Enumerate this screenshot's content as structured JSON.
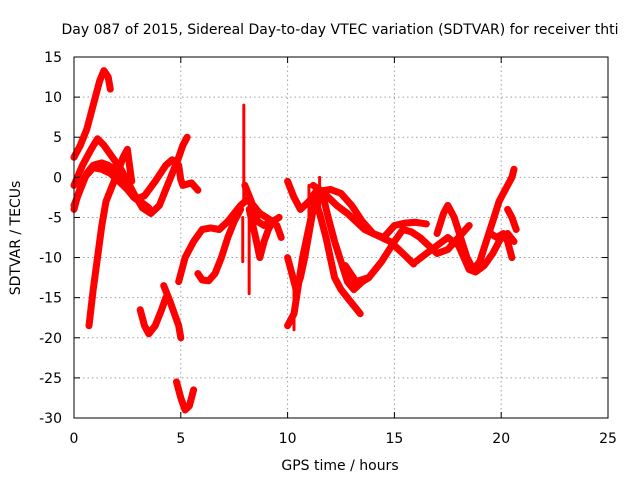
{
  "chart_data": {
    "type": "scatter",
    "title": "Day 087 of 2015, Sidereal Day-to-day VTEC variation (SDTVAR) for receiver thti",
    "xlabel": "GPS time / hours",
    "ylabel": "SDTVAR / TECUs",
    "xlim": [
      0,
      25
    ],
    "ylim": [
      -30,
      15
    ],
    "xticks": [
      0,
      5,
      10,
      15,
      20,
      25
    ],
    "yticks": [
      -30,
      -25,
      -20,
      -15,
      -10,
      -5,
      0,
      5,
      10,
      15
    ],
    "grid": true,
    "marker": "+",
    "color": "#ff0000",
    "series": [
      {
        "name": "arc-1",
        "points": [
          [
            0.0,
            2.5
          ],
          [
            0.3,
            4.0
          ],
          [
            0.6,
            6.0
          ],
          [
            0.9,
            9.0
          ],
          [
            1.2,
            12.0
          ],
          [
            1.4,
            13.3
          ],
          [
            1.6,
            12.5
          ],
          [
            1.7,
            11.0
          ]
        ]
      },
      {
        "name": "arc-2",
        "points": [
          [
            0.0,
            -1.0
          ],
          [
            0.4,
            1.5
          ],
          [
            0.8,
            3.5
          ],
          [
            1.1,
            4.8
          ],
          [
            1.4,
            4.0
          ],
          [
            1.8,
            2.5
          ],
          [
            2.2,
            1.0
          ],
          [
            2.5,
            -0.5
          ],
          [
            2.8,
            -2.0
          ],
          [
            3.2,
            -3.8
          ],
          [
            3.6,
            -4.5
          ],
          [
            4.0,
            -3.5
          ],
          [
            4.3,
            -1.5
          ],
          [
            4.6,
            0.5
          ],
          [
            4.9,
            2.5
          ],
          [
            5.1,
            4.0
          ],
          [
            5.3,
            5.0
          ]
        ]
      },
      {
        "name": "arc-3",
        "points": [
          [
            0.0,
            -4.0
          ],
          [
            0.2,
            -2.0
          ],
          [
            0.5,
            0.0
          ],
          [
            0.9,
            1.2
          ],
          [
            1.3,
            1.0
          ],
          [
            1.7,
            0.5
          ],
          [
            2.1,
            -0.5
          ],
          [
            2.5,
            -1.5
          ],
          [
            2.9,
            -2.7
          ],
          [
            3.3,
            -2.3
          ],
          [
            3.8,
            -0.5
          ],
          [
            4.3,
            1.5
          ],
          [
            4.6,
            2.2
          ],
          [
            4.9,
            1.5
          ],
          [
            5.0,
            -0.3
          ],
          [
            5.1,
            -1.0
          ],
          [
            5.5,
            -0.7
          ],
          [
            5.8,
            -1.6
          ]
        ]
      },
      {
        "name": "arc-4",
        "points": [
          [
            0.0,
            -3.5
          ],
          [
            0.3,
            -1.5
          ],
          [
            0.6,
            0.5
          ],
          [
            0.9,
            1.5
          ],
          [
            1.3,
            1.8
          ],
          [
            1.6,
            1.5
          ],
          [
            1.9,
            1.0
          ],
          [
            2.2,
            -0.5
          ],
          [
            2.5,
            -1.5
          ],
          [
            2.8,
            -2.5
          ],
          [
            3.1,
            -3.0
          ],
          [
            3.5,
            -3.8
          ]
        ]
      },
      {
        "name": "arc-5",
        "points": [
          [
            0.7,
            -18.5
          ],
          [
            0.9,
            -14.0
          ],
          [
            1.1,
            -10.0
          ],
          [
            1.3,
            -6.0
          ],
          [
            1.5,
            -3.0
          ],
          [
            1.8,
            -1.0
          ],
          [
            2.1,
            1.0
          ],
          [
            2.3,
            2.5
          ],
          [
            2.5,
            3.5
          ],
          [
            2.6,
            1.5
          ],
          [
            2.7,
            -0.5
          ]
        ]
      },
      {
        "name": "arc-6",
        "points": [
          [
            3.1,
            -16.5
          ],
          [
            3.3,
            -18.5
          ],
          [
            3.5,
            -19.5
          ],
          [
            3.8,
            -18.5
          ],
          [
            4.1,
            -16.5
          ],
          [
            4.3,
            -15.0
          ]
        ]
      },
      {
        "name": "arc-7",
        "points": [
          [
            4.2,
            -13.5
          ],
          [
            4.5,
            -15.5
          ],
          [
            4.7,
            -17.0
          ],
          [
            4.9,
            -18.5
          ],
          [
            5.0,
            -20.0
          ]
        ]
      },
      {
        "name": "arc-8",
        "points": [
          [
            4.9,
            -13.0
          ],
          [
            5.2,
            -10.0
          ],
          [
            5.6,
            -8.0
          ],
          [
            6.0,
            -6.5
          ],
          [
            6.4,
            -6.3
          ],
          [
            6.8,
            -6.5
          ],
          [
            7.2,
            -5.5
          ],
          [
            7.5,
            -4.5
          ],
          [
            7.8,
            -3.5
          ],
          [
            8.1,
            -2.8
          ],
          [
            8.4,
            -3.5
          ],
          [
            8.7,
            -4.5
          ],
          [
            9.0,
            -5.0
          ],
          [
            9.3,
            -5.5
          ]
        ]
      },
      {
        "name": "arc-9",
        "points": [
          [
            4.8,
            -25.5
          ],
          [
            5.0,
            -27.5
          ],
          [
            5.2,
            -29.0
          ],
          [
            5.4,
            -28.5
          ],
          [
            5.5,
            -27.5
          ],
          [
            5.6,
            -26.5
          ]
        ]
      },
      {
        "name": "arc-10",
        "points": [
          [
            5.8,
            -12.0
          ],
          [
            6.0,
            -12.8
          ],
          [
            6.3,
            -12.9
          ],
          [
            6.6,
            -12.0
          ],
          [
            6.9,
            -10.0
          ],
          [
            7.2,
            -7.5
          ],
          [
            7.5,
            -5.5
          ],
          [
            7.8,
            -4.0
          ]
        ]
      },
      {
        "name": "arc-11",
        "points": [
          [
            8.0,
            -1.0
          ],
          [
            8.3,
            -3.0
          ],
          [
            8.6,
            -5.5
          ],
          [
            8.9,
            -6.0
          ],
          [
            9.2,
            -5.5
          ],
          [
            9.5,
            -6.0
          ],
          [
            9.7,
            -7.5
          ]
        ]
      },
      {
        "name": "arc-12",
        "points": [
          [
            8.2,
            -4.0
          ],
          [
            8.5,
            -7.5
          ],
          [
            8.7,
            -10.0
          ],
          [
            8.9,
            -8.0
          ],
          [
            9.1,
            -6.5
          ],
          [
            9.3,
            -5.5
          ],
          [
            9.6,
            -5.0
          ]
        ]
      },
      {
        "name": "arc-13",
        "points": [
          [
            10.0,
            -18.5
          ],
          [
            10.3,
            -17.0
          ],
          [
            10.5,
            -13.5
          ],
          [
            10.7,
            -10.0
          ],
          [
            10.9,
            -7.5
          ],
          [
            11.1,
            -5.0
          ],
          [
            11.3,
            -3.0
          ],
          [
            11.5,
            -4.5
          ],
          [
            11.8,
            -7.5
          ],
          [
            12.0,
            -10.0
          ],
          [
            12.2,
            -12.5
          ],
          [
            12.5,
            -14.0
          ],
          [
            12.8,
            -15.0
          ],
          [
            13.1,
            -16.0
          ],
          [
            13.4,
            -17.0
          ]
        ]
      },
      {
        "name": "arc-14",
        "points": [
          [
            10.0,
            -10.0
          ],
          [
            10.2,
            -12.0
          ],
          [
            10.4,
            -14.0
          ],
          [
            10.6,
            -12.5
          ],
          [
            10.8,
            -10.0
          ],
          [
            11.0,
            -7.0
          ],
          [
            11.2,
            -4.0
          ],
          [
            11.4,
            -2.0
          ],
          [
            11.7,
            -2.8
          ],
          [
            11.9,
            -5.0
          ],
          [
            12.2,
            -8.0
          ],
          [
            12.5,
            -10.5
          ],
          [
            12.8,
            -13.0
          ],
          [
            13.1,
            -14.0
          ],
          [
            13.5,
            -13.0
          ],
          [
            13.8,
            -12.5
          ]
        ]
      },
      {
        "name": "arc-15",
        "points": [
          [
            10.0,
            -0.5
          ],
          [
            10.3,
            -2.5
          ],
          [
            10.6,
            -4.0
          ],
          [
            11.0,
            -3.0
          ],
          [
            11.4,
            -1.5
          ],
          [
            11.8,
            -2.2
          ],
          [
            12.3,
            -3.5
          ],
          [
            12.8,
            -4.5
          ],
          [
            13.2,
            -5.5
          ],
          [
            13.6,
            -6.5
          ],
          [
            14.0,
            -7.0
          ],
          [
            14.4,
            -7.5
          ],
          [
            14.8,
            -8.0
          ],
          [
            15.2,
            -9.0
          ],
          [
            15.6,
            -10.0
          ],
          [
            15.9,
            -10.8
          ]
        ]
      },
      {
        "name": "arc-16",
        "points": [
          [
            11.2,
            -1.0
          ],
          [
            11.6,
            -1.7
          ],
          [
            12.0,
            -1.5
          ],
          [
            12.5,
            -2.0
          ],
          [
            13.0,
            -3.5
          ],
          [
            13.5,
            -5.5
          ],
          [
            14.0,
            -7.0
          ],
          [
            14.5,
            -7.5
          ],
          [
            15.0,
            -6.0
          ],
          [
            15.5,
            -5.7
          ],
          [
            16.0,
            -5.6
          ],
          [
            16.5,
            -5.8
          ]
        ]
      },
      {
        "name": "arc-17",
        "points": [
          [
            12.7,
            -11.0
          ],
          [
            13.2,
            -13.0
          ],
          [
            13.8,
            -12.5
          ],
          [
            14.4,
            -10.5
          ],
          [
            15.0,
            -8.0
          ],
          [
            15.4,
            -6.5
          ],
          [
            15.8,
            -6.8
          ],
          [
            16.2,
            -7.5
          ],
          [
            16.6,
            -8.5
          ],
          [
            17.0,
            -9.5
          ],
          [
            17.5,
            -9.0
          ],
          [
            18.0,
            -7.5
          ],
          [
            18.5,
            -6.0
          ]
        ]
      },
      {
        "name": "arc-18",
        "points": [
          [
            16.0,
            -10.5
          ],
          [
            16.5,
            -9.5
          ],
          [
            17.0,
            -8.5
          ],
          [
            17.5,
            -7.5
          ],
          [
            18.0,
            -8.5
          ],
          [
            18.5,
            -11.5
          ],
          [
            18.8,
            -11.8
          ],
          [
            19.2,
            -11.0
          ],
          [
            19.6,
            -9.5
          ],
          [
            20.0,
            -7.5
          ],
          [
            20.3,
            -7.0
          ],
          [
            20.6,
            -8.0
          ]
        ]
      },
      {
        "name": "arc-19",
        "points": [
          [
            17.0,
            -7.0
          ],
          [
            17.3,
            -4.5
          ],
          [
            17.5,
            -3.5
          ],
          [
            17.8,
            -5.0
          ],
          [
            18.1,
            -7.5
          ],
          [
            18.4,
            -10.0
          ],
          [
            18.7,
            -11.5
          ],
          [
            19.0,
            -10.5
          ],
          [
            19.3,
            -8.0
          ],
          [
            19.6,
            -5.5
          ],
          [
            19.9,
            -3.0
          ],
          [
            20.1,
            -2.0
          ],
          [
            20.3,
            -1.0
          ],
          [
            20.5,
            0.0
          ],
          [
            20.6,
            1.0
          ]
        ]
      },
      {
        "name": "arc-20",
        "points": [
          [
            19.5,
            -7.0
          ],
          [
            19.8,
            -7.5
          ],
          [
            20.1,
            -7.0
          ],
          [
            20.3,
            -8.0
          ],
          [
            20.5,
            -10.0
          ]
        ]
      },
      {
        "name": "arc-21",
        "points": [
          [
            20.3,
            -4.0
          ],
          [
            20.5,
            -5.0
          ],
          [
            20.7,
            -6.5
          ]
        ]
      }
    ],
    "spikes": [
      {
        "name": "spike-1",
        "x": 7.95,
        "y_from": 9.0,
        "y_to": -3.0
      },
      {
        "name": "spike-2",
        "x": 8.2,
        "y_from": -3.5,
        "y_to": -14.5
      },
      {
        "name": "spike-3",
        "x": 7.9,
        "y_from": -5.0,
        "y_to": -10.5
      },
      {
        "name": "spike-4",
        "x": 11.0,
        "y_from": -1.0,
        "y_to": -8.0
      },
      {
        "name": "spike-5",
        "x": 11.5,
        "y_from": 0.0,
        "y_to": -5.0
      },
      {
        "name": "spike-6",
        "x": 10.3,
        "y_from": -14.0,
        "y_to": -19.0
      }
    ]
  }
}
